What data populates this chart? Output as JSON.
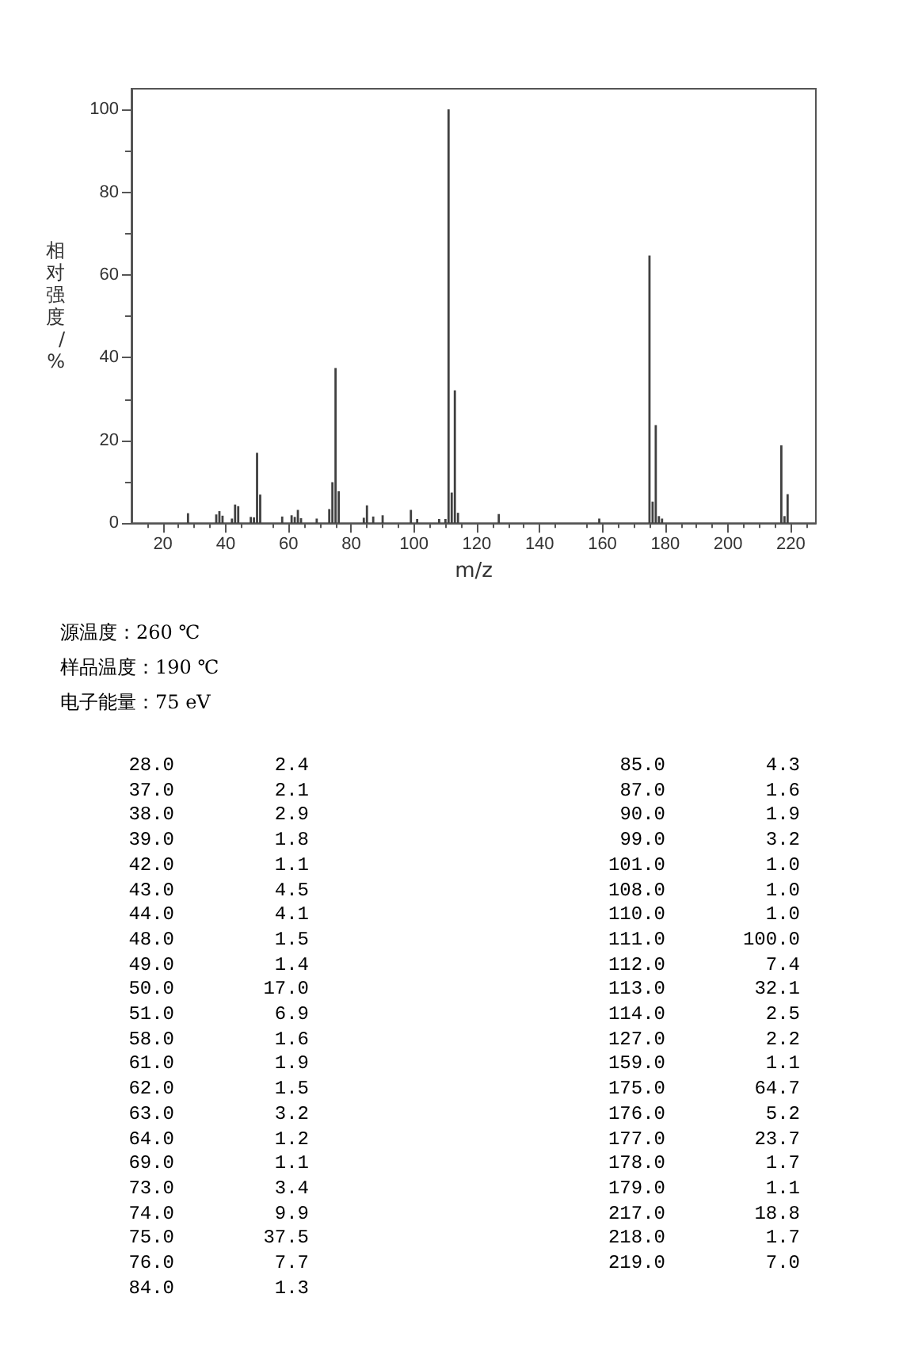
{
  "chart_data": [
    {
      "type": "bar",
      "xlabel": "m/z",
      "ylabel": "相对强度/%",
      "x": [
        28,
        37,
        38,
        39,
        42,
        43,
        44,
        48,
        49,
        50,
        51,
        58,
        61,
        62,
        63,
        64,
        69,
        73,
        74,
        75,
        76,
        84,
        85,
        87,
        90,
        99,
        101,
        108,
        110,
        111,
        112,
        113,
        114,
        127,
        159,
        175,
        176,
        177,
        178,
        179,
        217,
        218,
        219
      ],
      "values": [
        2.4,
        2.1,
        2.9,
        1.8,
        1.1,
        4.5,
        4.1,
        1.5,
        1.4,
        17.0,
        6.9,
        1.6,
        1.9,
        1.5,
        3.2,
        1.2,
        1.1,
        3.4,
        9.9,
        37.5,
        7.7,
        1.3,
        4.3,
        1.6,
        1.9,
        3.2,
        1.0,
        1.0,
        1.0,
        100.0,
        7.4,
        32.1,
        2.5,
        2.2,
        1.1,
        64.7,
        5.2,
        23.7,
        1.7,
        1.1,
        18.8,
        1.7,
        7.0
      ],
      "color": "#404040",
      "xlim": [
        10,
        228
      ],
      "xticks": [
        20,
        40,
        60,
        80,
        100,
        120,
        140,
        160,
        180,
        200,
        220
      ],
      "ylim": [
        0,
        105
      ],
      "yticks": [
        0,
        20,
        40,
        60,
        80,
        100
      ],
      "grid": false,
      "annotations": [
        "源温度：260 ℃",
        "样品温度：190 ℃",
        "电子能量：75 eV"
      ]
    },
    {
      "type": "other",
      "annotations": [
        "28.0",
        "2.4",
        "37.0",
        "2.1",
        "38.0",
        "2.9",
        "39.0",
        "1.8",
        "42.0",
        "1.1",
        "43.0",
        "4.5",
        "44.0",
        "4.1",
        "48.0",
        "1.5",
        "49.0",
        "1.4",
        "50.0",
        "17.0",
        "51.0",
        "6.9",
        "58.0",
        "1.6",
        "61.0",
        "1.9",
        "62.0",
        "1.5",
        "63.0",
        "3.2",
        "64.0",
        "1.2",
        "69.0",
        "1.1",
        "73.0",
        "3.4",
        "74.0",
        "9.9",
        "75.0",
        "37.5",
        "76.0",
        "7.7",
        "84.0",
        "1.3",
        "85.0",
        "4.3",
        "87.0",
        "1.6",
        "90.0",
        "1.9",
        "99.0",
        "3.2",
        "101.0",
        "1.0",
        "108.0",
        "1.0",
        "110.0",
        "1.0",
        "111.0",
        "100.0",
        "112.0",
        "7.4",
        "113.0",
        "32.1",
        "114.0",
        "2.5",
        "127.0",
        "2.2",
        "159.0",
        "1.1",
        "175.0",
        "64.7",
        "176.0",
        "5.2",
        "177.0",
        "23.7",
        "178.0",
        "1.7",
        "179.0",
        "1.1",
        "217.0",
        "18.8",
        "218.0",
        "1.7",
        "219.0",
        "7.0"
      ]
    }
  ]
}
